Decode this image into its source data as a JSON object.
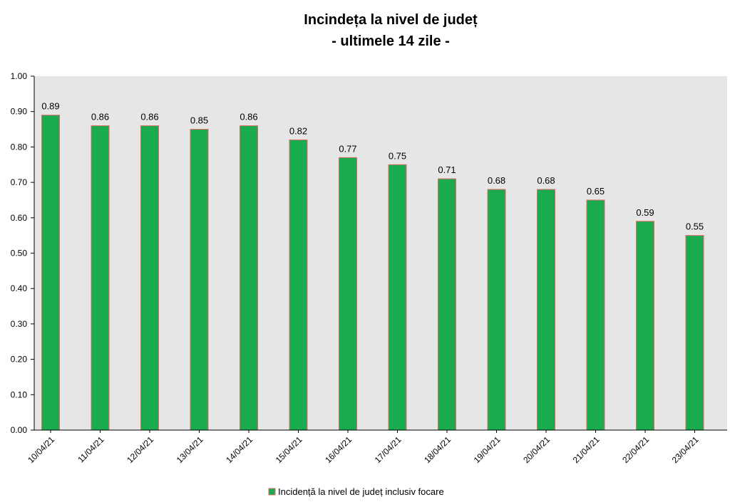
{
  "chart_data": {
    "type": "bar",
    "title": [
      "Incindeța la nivel de județ",
      "- ultimele 14 zile -"
    ],
    "categories": [
      "10/04/21",
      "11/04/21",
      "12/04/21",
      "13/04/21",
      "14/04/21",
      "15/04/21",
      "16/04/21",
      "17/04/21",
      "18/04/21",
      "19/04/21",
      "20/04/21",
      "21/04/21",
      "22/04/21",
      "23/04/21"
    ],
    "series": [
      {
        "name": "Incidență la nivel de județ inclusiv focare",
        "values": [
          0.89,
          0.86,
          0.86,
          0.85,
          0.86,
          0.82,
          0.77,
          0.75,
          0.71,
          0.68,
          0.68,
          0.65,
          0.59,
          0.55
        ],
        "color": "#1aab4e",
        "border_color": "#e06a6a"
      }
    ],
    "xlabel": "",
    "ylabel": "",
    "ylim": [
      0,
      1.0
    ],
    "yticks": [
      "0.00",
      "0.10",
      "0.20",
      "0.30",
      "0.40",
      "0.50",
      "0.60",
      "0.70",
      "0.80",
      "0.90",
      "1.00"
    ],
    "data_labels": [
      "0.89",
      "0.86",
      "0.86",
      "0.85",
      "0.86",
      "0.82",
      "0.77",
      "0.75",
      "0.71",
      "0.68",
      "0.68",
      "0.65",
      "0.59",
      "0.55"
    ],
    "grid": false,
    "legend_position": "bottom-center",
    "plot_background": "#e6e6e6"
  }
}
